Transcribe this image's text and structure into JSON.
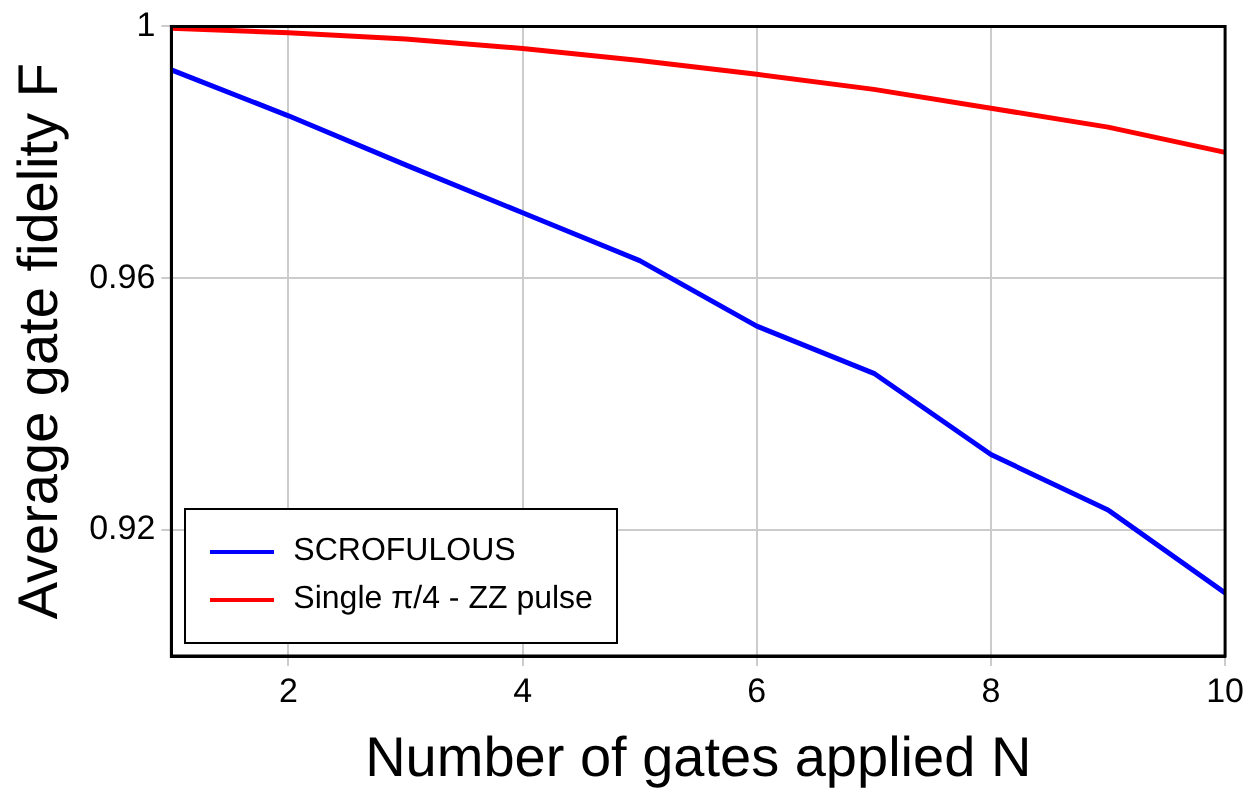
{
  "chart_data": {
    "type": "line",
    "xlabel": "Number of gates applied N",
    "ylabel": "Average gate fidelity F",
    "x": [
      1,
      2,
      3,
      4,
      5,
      6,
      7,
      8,
      9,
      10
    ],
    "series": [
      {
        "name": "SCROFULOUS",
        "color": "#0000ff",
        "values": [
          0.9931,
          0.9858,
          0.978,
          0.9704,
          0.9628,
          0.9524,
          0.9449,
          0.932,
          0.9232,
          0.91
        ]
      },
      {
        "name": "Single π/4 - ZZ pulse",
        "color": "#ff0000",
        "values": [
          0.9997,
          0.999,
          0.998,
          0.9965,
          0.9946,
          0.9924,
          0.99,
          0.987,
          0.984,
          0.98
        ]
      }
    ],
    "xlim": [
      1,
      10
    ],
    "xticks": [
      2,
      4,
      6,
      8,
      10
    ],
    "ylim": [
      0.9,
      1
    ],
    "yticks": [
      0.92,
      0.96,
      1
    ],
    "grid": true,
    "legend": "bottom left",
    "marker": "none",
    "line_style": "solid"
  }
}
